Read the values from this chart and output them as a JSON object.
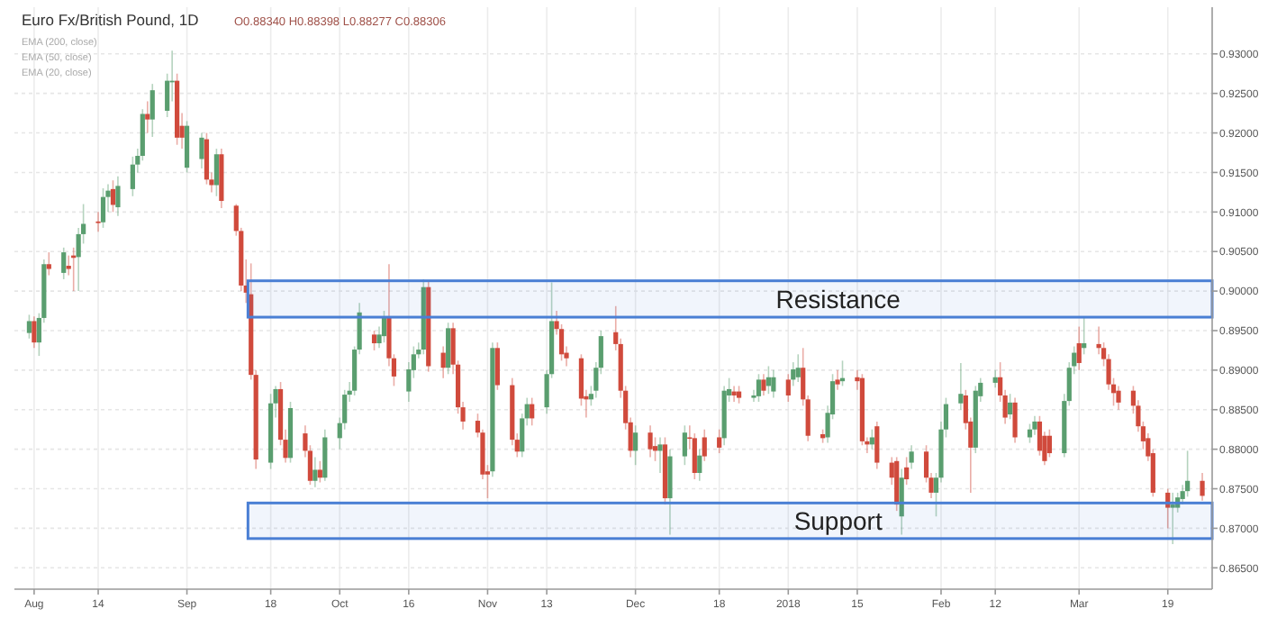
{
  "chart_data": {
    "type": "candlestick",
    "title": "Euro Fx/British Pound, 1D",
    "annotations": [
      "O0.88340 H0.88398 L0.88277 C0.88306",
      "EMA (200, close)",
      "EMA (50, close)",
      "EMA (20, close)"
    ],
    "x": [
      "2017-07-31",
      "2017-08-01",
      "2017-08-02",
      "2017-08-03",
      "2017-08-04",
      "2017-08-07",
      "2017-08-08",
      "2017-08-09",
      "2017-08-10",
      "2017-08-11",
      "2017-08-14",
      "2017-08-15",
      "2017-08-16",
      "2017-08-17",
      "2017-08-18",
      "2017-08-21",
      "2017-08-22",
      "2017-08-23",
      "2017-08-24",
      "2017-08-25",
      "2017-08-28",
      "2017-08-29",
      "2017-08-30",
      "2017-08-31",
      "2017-09-01",
      "2017-09-04",
      "2017-09-05",
      "2017-09-06",
      "2017-09-07",
      "2017-09-08",
      "2017-09-11",
      "2017-09-12",
      "2017-09-13",
      "2017-09-14",
      "2017-09-15",
      "2017-09-18",
      "2017-09-19",
      "2017-09-20",
      "2017-09-21",
      "2017-09-22",
      "2017-09-25",
      "2017-09-26",
      "2017-09-27",
      "2017-09-28",
      "2017-09-29",
      "2017-10-02",
      "2017-10-03",
      "2017-10-04",
      "2017-10-05",
      "2017-10-06",
      "2017-10-09",
      "2017-10-10",
      "2017-10-11",
      "2017-10-12",
      "2017-10-13",
      "2017-10-16",
      "2017-10-17",
      "2017-10-18",
      "2017-10-19",
      "2017-10-20",
      "2017-10-23",
      "2017-10-24",
      "2017-10-25",
      "2017-10-26",
      "2017-10-27",
      "2017-10-30",
      "2017-10-31",
      "2017-11-01",
      "2017-11-02",
      "2017-11-03",
      "2017-11-06",
      "2017-11-07",
      "2017-11-08",
      "2017-11-09",
      "2017-11-10",
      "2017-11-13",
      "2017-11-14",
      "2017-11-15",
      "2017-11-16",
      "2017-11-17",
      "2017-11-20",
      "2017-11-21",
      "2017-11-22",
      "2017-11-23",
      "2017-11-24",
      "2017-11-27",
      "2017-11-28",
      "2017-11-29",
      "2017-11-30",
      "2017-12-01",
      "2017-12-04",
      "2017-12-05",
      "2017-12-06",
      "2017-12-07",
      "2017-12-08",
      "2017-12-11",
      "2017-12-12",
      "2017-12-13",
      "2017-12-14",
      "2017-12-15",
      "2017-12-18",
      "2017-12-19",
      "2017-12-20",
      "2017-12-21",
      "2017-12-22",
      "2017-12-25",
      "2017-12-26",
      "2017-12-27",
      "2017-12-28",
      "2017-12-29",
      "2018-01-01",
      "2018-01-02",
      "2018-01-03",
      "2018-01-04",
      "2018-01-05",
      "2018-01-08",
      "2018-01-09",
      "2018-01-10",
      "2018-01-11",
      "2018-01-12",
      "2018-01-15",
      "2018-01-16",
      "2018-01-17",
      "2018-01-18",
      "2018-01-19",
      "2018-01-22",
      "2018-01-23",
      "2018-01-24",
      "2018-01-25",
      "2018-01-26",
      "2018-01-29",
      "2018-01-30",
      "2018-01-31",
      "2018-02-01",
      "2018-02-02",
      "2018-02-05",
      "2018-02-06",
      "2018-02-07",
      "2018-02-08",
      "2018-02-09",
      "2018-02-12",
      "2018-02-13",
      "2018-02-14",
      "2018-02-15",
      "2018-02-16",
      "2018-02-19",
      "2018-02-20",
      "2018-02-21",
      "2018-02-22",
      "2018-02-23",
      "2018-02-26",
      "2018-02-27",
      "2018-02-28",
      "2018-03-01",
      "2018-03-02",
      "2018-03-05",
      "2018-03-06",
      "2018-03-07",
      "2018-03-08",
      "2018-03-09",
      "2018-03-12",
      "2018-03-13",
      "2018-03-14",
      "2018-03-15",
      "2018-03-16",
      "2018-03-19",
      "2018-03-20",
      "2018-03-21",
      "2018-03-22",
      "2018-03-23",
      "2018-03-26"
    ],
    "ohlc": [
      [
        0.8947,
        0.897,
        0.894,
        0.8962
      ],
      [
        0.8962,
        0.8968,
        0.8928,
        0.8935
      ],
      [
        0.8935,
        0.8972,
        0.8918,
        0.8966
      ],
      [
        0.8966,
        0.904,
        0.896,
        0.9034
      ],
      [
        0.9034,
        0.9049,
        0.902,
        0.9028
      ],
      [
        0.9023,
        0.9055,
        0.9015,
        0.9049
      ],
      [
        0.9032,
        0.9045,
        0.902,
        0.9028
      ],
      [
        0.9045,
        0.9055,
        0.9,
        0.9042
      ],
      [
        0.9043,
        0.908,
        0.9,
        0.9072
      ],
      [
        0.9072,
        0.911,
        0.906,
        0.9085
      ],
      [
        0.9088,
        0.91,
        0.9075,
        0.9086
      ],
      [
        0.9087,
        0.913,
        0.908,
        0.9119
      ],
      [
        0.9119,
        0.9135,
        0.91,
        0.9127
      ],
      [
        0.9129,
        0.914,
        0.91,
        0.9109
      ],
      [
        0.9106,
        0.9145,
        0.9095,
        0.9133
      ],
      [
        0.9129,
        0.917,
        0.912,
        0.916
      ],
      [
        0.916,
        0.918,
        0.915,
        0.9171
      ],
      [
        0.9171,
        0.923,
        0.9165,
        0.9224
      ],
      [
        0.9224,
        0.924,
        0.92,
        0.9217
      ],
      [
        0.9217,
        0.9262,
        0.9195,
        0.9254
      ],
      [
        0.9228,
        0.9275,
        0.922,
        0.9266
      ],
      [
        0.9264,
        0.9304,
        0.924,
        0.9266
      ],
      [
        0.9266,
        0.9275,
        0.9185,
        0.9194
      ],
      [
        0.9209,
        0.9225,
        0.918,
        0.9194
      ],
      [
        0.9156,
        0.9215,
        0.915,
        0.9209
      ],
      [
        0.9167,
        0.92,
        0.9155,
        0.9194
      ],
      [
        0.9192,
        0.92,
        0.9135,
        0.9141
      ],
      [
        0.9141,
        0.915,
        0.9125,
        0.9134
      ],
      [
        0.9134,
        0.918,
        0.912,
        0.9173
      ],
      [
        0.9173,
        0.918,
        0.9105,
        0.9114
      ],
      [
        0.9108,
        0.911,
        0.907,
        0.9076
      ],
      [
        0.9076,
        0.908,
        0.9,
        0.9007
      ],
      [
        0.9007,
        0.904,
        0.8985,
        0.8998
      ],
      [
        0.8996,
        0.9035,
        0.8888,
        0.8894
      ],
      [
        0.8894,
        0.89,
        0.8775,
        0.8787
      ],
      [
        0.8783,
        0.887,
        0.8775,
        0.8858
      ],
      [
        0.8858,
        0.888,
        0.884,
        0.8876
      ],
      [
        0.8876,
        0.8885,
        0.8805,
        0.8812
      ],
      [
        0.8812,
        0.8825,
        0.8783,
        0.8789
      ],
      [
        0.8789,
        0.886,
        0.8783,
        0.8852
      ],
      [
        0.882,
        0.883,
        0.879,
        0.8798
      ],
      [
        0.8798,
        0.8805,
        0.8755,
        0.876
      ],
      [
        0.876,
        0.879,
        0.8752,
        0.8774
      ],
      [
        0.8774,
        0.8785,
        0.8758,
        0.8764
      ],
      [
        0.8764,
        0.8825,
        0.876,
        0.8815
      ],
      [
        0.8814,
        0.884,
        0.88,
        0.8833
      ],
      [
        0.8833,
        0.8875,
        0.8825,
        0.8869
      ],
      [
        0.8869,
        0.8885,
        0.886,
        0.8874
      ],
      [
        0.8874,
        0.893,
        0.8868,
        0.8926
      ],
      [
        0.8926,
        0.8985,
        0.892,
        0.8973
      ],
      [
        0.8945,
        0.895,
        0.8925,
        0.8934
      ],
      [
        0.8934,
        0.8955,
        0.8928,
        0.8945
      ],
      [
        0.8943,
        0.8975,
        0.8935,
        0.8968
      ],
      [
        0.8967,
        0.9034,
        0.8905,
        0.8915
      ],
      [
        0.8915,
        0.892,
        0.888,
        0.8892
      ],
      [
        0.8873,
        0.891,
        0.886,
        0.8901
      ],
      [
        0.89,
        0.893,
        0.889,
        0.892
      ],
      [
        0.892,
        0.8935,
        0.8915,
        0.8926
      ],
      [
        0.8926,
        0.9015,
        0.892,
        0.9005
      ],
      [
        0.9005,
        0.9012,
        0.8898,
        0.8905
      ],
      [
        0.8922,
        0.893,
        0.889,
        0.8903
      ],
      [
        0.8903,
        0.896,
        0.8895,
        0.8953
      ],
      [
        0.8953,
        0.896,
        0.8895,
        0.8907
      ],
      [
        0.8907,
        0.8912,
        0.8845,
        0.8853
      ],
      [
        0.8853,
        0.886,
        0.8825,
        0.8835
      ],
      [
        0.8836,
        0.8845,
        0.8815,
        0.8821
      ],
      [
        0.8821,
        0.8825,
        0.8762,
        0.8768
      ],
      [
        0.8772,
        0.878,
        0.8738,
        0.8768
      ],
      [
        0.8772,
        0.8935,
        0.8765,
        0.8928
      ],
      [
        0.8928,
        0.8935,
        0.8875,
        0.8881
      ],
      [
        0.8881,
        0.889,
        0.8805,
        0.8812
      ],
      [
        0.8812,
        0.882,
        0.879,
        0.8797
      ],
      [
        0.8797,
        0.8845,
        0.879,
        0.8839
      ],
      [
        0.8839,
        0.8865,
        0.883,
        0.8857
      ],
      [
        0.8857,
        0.8865,
        0.883,
        0.8839
      ],
      [
        0.8853,
        0.89,
        0.8845,
        0.8895
      ],
      [
        0.8895,
        0.9011,
        0.889,
        0.8962
      ],
      [
        0.8962,
        0.8975,
        0.8945,
        0.8952
      ],
      [
        0.8952,
        0.8958,
        0.8912,
        0.892
      ],
      [
        0.8922,
        0.893,
        0.8905,
        0.8915
      ],
      [
        0.8915,
        0.892,
        0.8855,
        0.8864
      ],
      [
        0.8867,
        0.8875,
        0.884,
        0.8863
      ],
      [
        0.8863,
        0.888,
        0.8855,
        0.887
      ],
      [
        0.8874,
        0.891,
        0.8865,
        0.8903
      ],
      [
        0.8903,
        0.895,
        0.8895,
        0.8943
      ],
      [
        0.8948,
        0.8981,
        0.8925,
        0.8933
      ],
      [
        0.8933,
        0.894,
        0.8865,
        0.8874
      ],
      [
        0.8874,
        0.888,
        0.8825,
        0.8833
      ],
      [
        0.8834,
        0.884,
        0.879,
        0.8798
      ],
      [
        0.8798,
        0.883,
        0.878,
        0.8821
      ],
      [
        0.8821,
        0.883,
        0.879,
        0.88
      ],
      [
        0.8804,
        0.8815,
        0.8785,
        0.8798
      ],
      [
        0.8798,
        0.8815,
        0.877,
        0.8806
      ],
      [
        0.8806,
        0.8815,
        0.873,
        0.8738
      ],
      [
        0.8738,
        0.88,
        0.8692,
        0.8791
      ],
      [
        0.8791,
        0.883,
        0.878,
        0.8821
      ],
      [
        0.8815,
        0.883,
        0.88,
        0.8814
      ],
      [
        0.8814,
        0.882,
        0.8762,
        0.877
      ],
      [
        0.877,
        0.88,
        0.876,
        0.8792
      ],
      [
        0.8815,
        0.8825,
        0.8785,
        0.8791
      ],
      [
        0.8815,
        0.8825,
        0.8795,
        0.8802
      ],
      [
        0.8814,
        0.888,
        0.8805,
        0.8874
      ],
      [
        0.8868,
        0.889,
        0.886,
        0.8876
      ],
      [
        0.8873,
        0.888,
        0.886,
        0.8868
      ],
      [
        0.8873,
        0.888,
        0.8858,
        0.8865
      ],
      [
        0.8865,
        0.8875,
        0.886,
        0.8868
      ],
      [
        0.8867,
        0.8895,
        0.886,
        0.8888
      ],
      [
        0.8888,
        0.8895,
        0.8868,
        0.8874
      ],
      [
        0.888,
        0.8905,
        0.887,
        0.8891
      ],
      [
        0.8873,
        0.89,
        0.8865,
        0.8891
      ],
      [
        0.8888,
        0.8895,
        0.886,
        0.8868
      ],
      [
        0.8888,
        0.891,
        0.888,
        0.8901
      ],
      [
        0.8891,
        0.892,
        0.8885,
        0.8903
      ],
      [
        0.8903,
        0.8928,
        0.8855,
        0.8863
      ],
      [
        0.8863,
        0.8868,
        0.881,
        0.8817
      ],
      [
        0.8819,
        0.8825,
        0.8808,
        0.8814
      ],
      [
        0.8815,
        0.8855,
        0.8808,
        0.8846
      ],
      [
        0.8844,
        0.8895,
        0.8838,
        0.8886
      ],
      [
        0.8888,
        0.89,
        0.8875,
        0.8882
      ],
      [
        0.8886,
        0.8912,
        0.888,
        0.889
      ],
      [
        0.8891,
        0.89,
        0.8875,
        0.8886
      ],
      [
        0.889,
        0.8895,
        0.8805,
        0.881
      ],
      [
        0.881,
        0.8815,
        0.8795,
        0.8806
      ],
      [
        0.8806,
        0.8825,
        0.88,
        0.8815
      ],
      [
        0.8829,
        0.8835,
        0.8775,
        0.8783
      ],
      [
        0.8783,
        0.879,
        0.8755,
        0.8764
      ],
      [
        0.8785,
        0.879,
        0.8722,
        0.873
      ],
      [
        0.8715,
        0.8775,
        0.8692,
        0.8764
      ],
      [
        0.8777,
        0.879,
        0.8755,
        0.8762
      ],
      [
        0.8783,
        0.8805,
        0.8775,
        0.8797
      ],
      [
        0.8797,
        0.8805,
        0.8758,
        0.8764
      ],
      [
        0.8764,
        0.877,
        0.8738,
        0.8745
      ],
      [
        0.8745,
        0.877,
        0.8715,
        0.8764
      ],
      [
        0.8764,
        0.8835,
        0.8758,
        0.8825
      ],
      [
        0.8825,
        0.8865,
        0.8815,
        0.8857
      ],
      [
        0.8858,
        0.8909,
        0.885,
        0.887
      ],
      [
        0.8868,
        0.8875,
        0.8825,
        0.8833
      ],
      [
        0.8835,
        0.884,
        0.8745,
        0.8802
      ],
      [
        0.8802,
        0.888,
        0.8795,
        0.8874
      ],
      [
        0.8867,
        0.889,
        0.886,
        0.8884
      ],
      [
        0.8884,
        0.89,
        0.8878,
        0.8891
      ],
      [
        0.8891,
        0.891,
        0.886,
        0.8868
      ],
      [
        0.8868,
        0.8875,
        0.8832,
        0.884
      ],
      [
        0.8844,
        0.887,
        0.8838,
        0.8859
      ],
      [
        0.8859,
        0.8865,
        0.8808,
        0.8815
      ],
      [
        0.8815,
        0.8832,
        0.8808,
        0.8825
      ],
      [
        0.8825,
        0.8842,
        0.8818,
        0.8835
      ],
      [
        0.8835,
        0.8842,
        0.8792,
        0.8798
      ],
      [
        0.8817,
        0.8822,
        0.878,
        0.8785
      ],
      [
        0.8817,
        0.8825,
        0.879,
        0.8795
      ],
      [
        0.8795,
        0.887,
        0.879,
        0.8861
      ],
      [
        0.8861,
        0.891,
        0.8855,
        0.8903
      ],
      [
        0.8905,
        0.893,
        0.8895,
        0.8922
      ],
      [
        0.8934,
        0.8955,
        0.89,
        0.8909
      ],
      [
        0.8928,
        0.8966,
        0.892,
        0.8934
      ],
      [
        0.8933,
        0.8955,
        0.892,
        0.8928
      ],
      [
        0.8928,
        0.8935,
        0.8905,
        0.8914
      ],
      [
        0.8914,
        0.892,
        0.8875,
        0.8882
      ],
      [
        0.8882,
        0.889,
        0.8855,
        0.8871
      ],
      [
        0.8874,
        0.888,
        0.885,
        0.8859
      ],
      [
        0.8874,
        0.888,
        0.8845,
        0.8855
      ],
      [
        0.8855,
        0.8862,
        0.8822,
        0.8829
      ],
      [
        0.8829,
        0.8835,
        0.88,
        0.881
      ],
      [
        0.8814,
        0.882,
        0.8785,
        0.8791
      ],
      [
        0.8795,
        0.88,
        0.874,
        0.8745
      ],
      [
        0.8745,
        0.875,
        0.87,
        0.8726
      ],
      [
        0.8726,
        0.8745,
        0.868,
        0.873
      ],
      [
        0.8726,
        0.8745,
        0.872,
        0.8739
      ],
      [
        0.8737,
        0.8755,
        0.873,
        0.8747
      ],
      [
        0.8747,
        0.8798,
        0.874,
        0.876
      ],
      [
        0.876,
        0.877,
        0.8735,
        0.8741
      ]
    ],
    "xlim": [
      "2017-07-28",
      "2018-03-28"
    ],
    "xticks": [
      {
        "value": "2017-08-01",
        "label": "Aug"
      },
      {
        "value": "2017-08-14",
        "label": "14"
      },
      {
        "value": "2017-09-01",
        "label": "Sep"
      },
      {
        "value": "2017-09-18",
        "label": "18"
      },
      {
        "value": "2017-10-02",
        "label": "Oct"
      },
      {
        "value": "2017-10-16",
        "label": "16"
      },
      {
        "value": "2017-11-01",
        "label": "Nov"
      },
      {
        "value": "2017-11-13",
        "label": "13"
      },
      {
        "value": "2017-12-01",
        "label": "Dec"
      },
      {
        "value": "2017-12-18",
        "label": "18"
      },
      {
        "value": "2018-01-01",
        "label": "2018"
      },
      {
        "value": "2018-01-15",
        "label": "15"
      },
      {
        "value": "2018-02-01",
        "label": "Feb"
      },
      {
        "value": "2018-02-12",
        "label": "12"
      },
      {
        "value": "2018-03-01",
        "label": "Mar"
      },
      {
        "value": "2018-03-19",
        "label": "19"
      }
    ],
    "ylim": [
      0.8623,
      0.9359
    ],
    "yticks": [
      {
        "value": 0.865,
        "label": "0.86500"
      },
      {
        "value": 0.87,
        "label": "0.87000"
      },
      {
        "value": 0.875,
        "label": "0.87500"
      },
      {
        "value": 0.88,
        "label": "0.88000"
      },
      {
        "value": 0.885,
        "label": "0.88500"
      },
      {
        "value": 0.89,
        "label": "0.89000"
      },
      {
        "value": 0.895,
        "label": "0.89500"
      },
      {
        "value": 0.9,
        "label": "0.90000"
      },
      {
        "value": 0.905,
        "label": "0.90500"
      },
      {
        "value": 0.91,
        "label": "0.91000"
      },
      {
        "value": 0.915,
        "label": "0.91500"
      },
      {
        "value": 0.92,
        "label": "0.92000"
      },
      {
        "value": 0.925,
        "label": "0.92500"
      },
      {
        "value": 0.93,
        "label": "0.93000"
      }
    ],
    "grid": true,
    "bands": [
      {
        "axis": "y",
        "from": 0.8967,
        "to": 0.9013,
        "label": "Resistance",
        "color": "#4a7fd4"
      },
      {
        "axis": "y",
        "from": 0.8687,
        "to": 0.8732,
        "label": "Support",
        "color": "#4a7fd4"
      }
    ]
  }
}
